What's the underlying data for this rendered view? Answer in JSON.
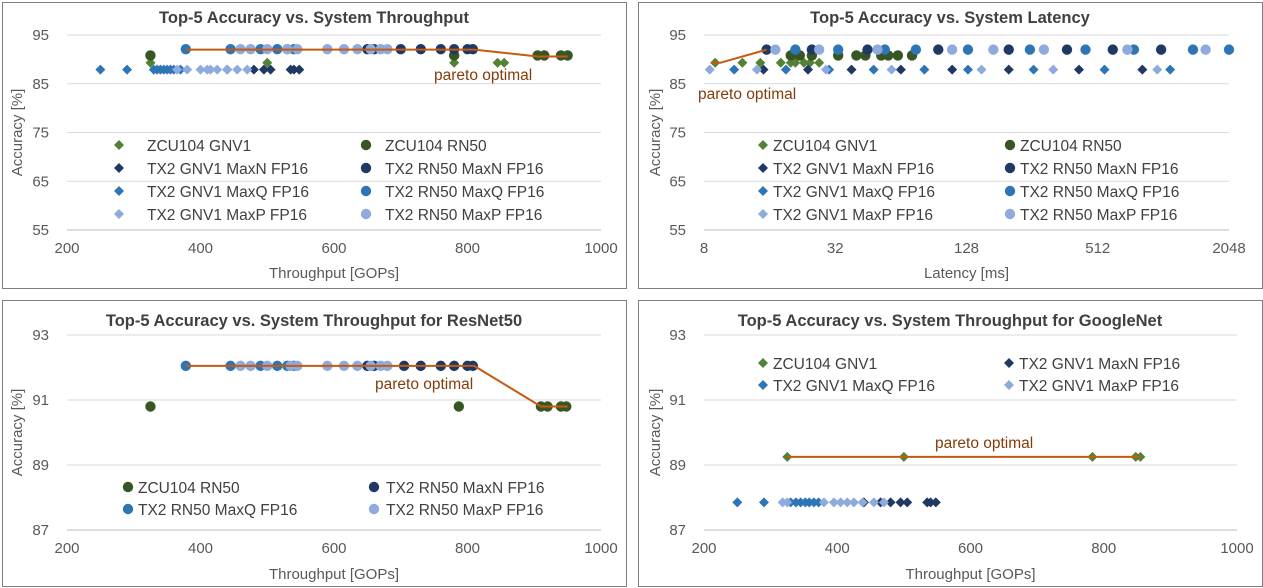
{
  "colors": {
    "ZCU104 GNV1": "#548235",
    "ZCU104 RN50": "#375623",
    "TX2 GNV1 MaxN FP16": "#1f3864",
    "TX2 RN50 MaxN FP16": "#1f3864",
    "TX2 GNV1 MaxQ FP16": "#2e75b6",
    "TX2 RN50 MaxQ FP16": "#2e75b6",
    "TX2 GNV1 MaxP FP16": "#8faadc",
    "TX2 RN50 MaxP FP16": "#8faadc",
    "pareto": "#c55a11"
  },
  "chart_data": [
    {
      "type": "scatter",
      "title": "Top-5  Accuracy vs. System Throughput",
      "xlabel": "Throughput [GOPs]",
      "ylabel": "Accuracy [%]",
      "xscale": "linear",
      "xlim": [
        200,
        1000
      ],
      "ylim": [
        55,
        95
      ],
      "xticks": [
        200,
        400,
        600,
        800,
        1000
      ],
      "yticks": [
        55,
        65,
        75,
        85,
        95
      ],
      "legend_position": "bottom-left",
      "annotation": "pareto optimal",
      "pareto": {
        "x": [
          378,
          810,
          905,
          950
        ],
        "y": [
          92.0,
          92.0,
          90.6,
          90.6
        ]
      },
      "series": [
        {
          "name": "ZCU104 GNV1",
          "marker": "diamond",
          "x": [
            325,
            500,
            780,
            845,
            855
          ],
          "y": [
            89.3,
            89.3,
            89.3,
            89.3,
            89.3
          ]
        },
        {
          "name": "ZCU104 RN50",
          "marker": "circle",
          "x": [
            325,
            780,
            905,
            915,
            940,
            950
          ],
          "y": [
            90.8,
            90.8,
            90.8,
            90.8,
            90.8,
            90.8
          ]
        },
        {
          "name": "TX2 GNV1 MaxN FP16",
          "marker": "diamond",
          "x": [
            440,
            480,
            495,
            505,
            535,
            540,
            548
          ],
          "y": [
            87.9,
            87.9,
            87.9,
            87.9,
            87.9,
            87.9,
            87.9
          ]
        },
        {
          "name": "TX2 RN50 MaxN FP16",
          "marker": "circle",
          "x": [
            650,
            660,
            700,
            730,
            760,
            780,
            800,
            808
          ],
          "y": [
            92.1,
            92.1,
            92.1,
            92.1,
            92.1,
            92.1,
            92.1,
            92.1
          ]
        },
        {
          "name": "TX2 GNV1 MaxQ FP16",
          "marker": "diamond",
          "x": [
            250,
            290,
            330,
            335,
            340,
            345,
            350,
            355,
            360,
            370
          ],
          "y": [
            87.9,
            87.9,
            87.9,
            87.9,
            87.9,
            87.9,
            87.9,
            87.9,
            87.9,
            87.9
          ]
        },
        {
          "name": "TX2 RN50 MaxQ FP16",
          "marker": "circle",
          "x": [
            378,
            445,
            490,
            515,
            530,
            540
          ],
          "y": [
            92.1,
            92.1,
            92.1,
            92.1,
            92.1,
            92.1
          ]
        },
        {
          "name": "TX2 GNV1 MaxP FP16",
          "marker": "diamond",
          "x": [
            365,
            380,
            400,
            410,
            415,
            425,
            440,
            455,
            470
          ],
          "y": [
            87.9,
            87.9,
            87.9,
            87.9,
            87.9,
            87.9,
            87.9,
            87.9,
            87.9
          ]
        },
        {
          "name": "TX2 RN50 MaxP FP16",
          "marker": "circle",
          "x": [
            460,
            475,
            500,
            530,
            545,
            590,
            615,
            635,
            655,
            670,
            680
          ],
          "y": [
            92.1,
            92.1,
            92.1,
            92.1,
            92.1,
            92.1,
            92.1,
            92.1,
            92.1,
            92.1,
            92.1
          ]
        }
      ]
    },
    {
      "type": "scatter",
      "title": "Top-5  Accuracy vs. System Latency",
      "xlabel": "Latency [ms]",
      "ylabel": "Accuracy [%]",
      "xscale": "log2",
      "xlim": [
        8,
        2048
      ],
      "ylim": [
        55,
        95
      ],
      "xticks": [
        8,
        32,
        128,
        512,
        2048
      ],
      "yticks": [
        55,
        65,
        75,
        85,
        95
      ],
      "legend_position": "bottom",
      "annotation": "pareto optimal",
      "pareto": {
        "x": [
          8.6,
          9.5,
          15.5
        ],
        "y": [
          89.3,
          89.3,
          92.0
        ]
      },
      "series": [
        {
          "name": "ZCU104 GNV1",
          "marker": "diamond",
          "x": [
            9.0,
            12.0,
            14.5,
            18.0,
            20.0,
            21.0,
            23.0,
            24.5,
            27.0
          ],
          "y": [
            89.3,
            89.3,
            89.3,
            89.3,
            89.3,
            89.3,
            89.3,
            89.3,
            89.3
          ]
        },
        {
          "name": "ZCU104 RN50",
          "marker": "circle",
          "x": [
            20.0,
            22.0,
            25.0,
            33.0,
            40.0,
            44.0,
            52.0,
            56.0,
            62.0,
            72.0
          ],
          "y": [
            90.8,
            90.8,
            90.8,
            90.8,
            90.8,
            90.8,
            90.8,
            90.8,
            90.8,
            90.8
          ]
        },
        {
          "name": "TX2 GNV1 MaxN FP16",
          "marker": "diamond",
          "x": [
            15.0,
            24.0,
            38.0,
            64.0,
            110.0,
            200.0,
            420.0,
            820.0
          ],
          "y": [
            87.9,
            87.9,
            87.9,
            87.9,
            87.9,
            87.9,
            87.9,
            87.9
          ]
        },
        {
          "name": "TX2 RN50 MaxN FP16",
          "marker": "circle",
          "x": [
            15.5,
            25.0,
            45.0,
            95.0,
            200.0,
            370.0,
            600.0,
            1000.0
          ],
          "y": [
            92.0,
            92.0,
            92.0,
            92.0,
            92.0,
            92.0,
            92.0,
            92.0
          ]
        },
        {
          "name": "TX2 GNV1 MaxQ FP16",
          "marker": "diamond",
          "x": [
            11.0,
            19.0,
            30.0,
            48.0,
            82.0,
            130.0,
            260.0,
            550.0,
            1100.0
          ],
          "y": [
            87.9,
            87.9,
            87.9,
            87.9,
            87.9,
            87.9,
            87.9,
            87.9,
            87.9
          ]
        },
        {
          "name": "TX2 RN50 MaxQ FP16",
          "marker": "circle",
          "x": [
            21.0,
            33.0,
            54.0,
            75.0,
            130.0,
            250.0,
            450.0,
            750.0,
            1400.0,
            2048.0
          ],
          "y": [
            92.0,
            92.0,
            92.0,
            92.0,
            92.0,
            92.0,
            92.0,
            92.0,
            92.0,
            92.0
          ]
        },
        {
          "name": "TX2 GNV1 MaxP FP16",
          "marker": "diamond",
          "x": [
            8.5,
            14.0,
            29.0,
            58.0,
            150.0,
            320.0,
            960.0
          ],
          "y": [
            87.9,
            87.9,
            87.9,
            87.9,
            87.9,
            87.9,
            87.9
          ]
        },
        {
          "name": "TX2 RN50 MaxP FP16",
          "marker": "circle",
          "x": [
            17.0,
            27.0,
            50.0,
            110.0,
            170.0,
            290.0,
            700.0,
            1600.0
          ],
          "y": [
            92.0,
            92.0,
            92.0,
            92.0,
            92.0,
            92.0,
            92.0,
            92.0
          ]
        }
      ]
    },
    {
      "type": "scatter",
      "title": "Top-5  Accuracy vs. System Throughput  for ResNet50",
      "xlabel": "Throughput [GOPs]",
      "ylabel": "Accuracy [%]",
      "xscale": "linear",
      "xlim": [
        200,
        1000
      ],
      "ylim": [
        87,
        93
      ],
      "xticks": [
        200,
        400,
        600,
        800,
        1000
      ],
      "yticks": [
        87,
        89,
        91,
        93
      ],
      "legend_position": "bottom",
      "annotation": "pareto optimal",
      "pareto": {
        "x": [
          378,
          810,
          910,
          950
        ],
        "y": [
          92.05,
          92.05,
          90.8,
          90.8
        ]
      },
      "series": [
        {
          "name": "ZCU104 RN50",
          "marker": "circle",
          "x": [
            325,
            787,
            910,
            920,
            940,
            948
          ],
          "y": [
            90.8,
            90.8,
            90.8,
            90.8,
            90.8,
            90.8
          ]
        },
        {
          "name": "TX2 RN50 MaxN FP16",
          "marker": "circle",
          "x": [
            650,
            660,
            705,
            730,
            760,
            780,
            800,
            808
          ],
          "y": [
            92.05,
            92.05,
            92.05,
            92.05,
            92.05,
            92.05,
            92.05,
            92.05
          ]
        },
        {
          "name": "TX2 RN50 MaxQ FP16",
          "marker": "circle",
          "x": [
            378,
            445,
            490,
            515,
            530,
            540
          ],
          "y": [
            92.05,
            92.05,
            92.05,
            92.05,
            92.05,
            92.05
          ]
        },
        {
          "name": "TX2 RN50 MaxP FP16",
          "marker": "circle",
          "x": [
            460,
            475,
            500,
            535,
            545,
            590,
            615,
            635,
            655,
            670,
            680
          ],
          "y": [
            92.05,
            92.05,
            92.05,
            92.05,
            92.05,
            92.05,
            92.05,
            92.05,
            92.05,
            92.05,
            92.05
          ]
        }
      ]
    },
    {
      "type": "scatter",
      "title": "Top-5  Accuracy vs. System Throughput  for GoogleNet",
      "xlabel": "Throughput [GOPs]",
      "ylabel": "Accuracy [%]",
      "xscale": "linear",
      "xlim": [
        200,
        1000
      ],
      "ylim": [
        87,
        93
      ],
      "xticks": [
        200,
        400,
        600,
        800,
        1000
      ],
      "yticks": [
        87,
        89,
        91,
        93
      ],
      "legend_position": "top",
      "annotation": "pareto optimal",
      "pareto": {
        "x": [
          325,
          855
        ],
        "y": [
          89.25,
          89.25
        ]
      },
      "series": [
        {
          "name": "ZCU104 GNV1",
          "marker": "diamond",
          "x": [
            325,
            500,
            783,
            848,
            855
          ],
          "y": [
            89.25,
            89.25,
            89.25,
            89.25,
            89.25
          ]
        },
        {
          "name": "TX2 GNV1 MaxN FP16",
          "marker": "diamond",
          "x": [
            440,
            465,
            480,
            495,
            505,
            535,
            540,
            548
          ],
          "y": [
            87.85,
            87.85,
            87.85,
            87.85,
            87.85,
            87.85,
            87.85,
            87.85
          ]
        },
        {
          "name": "TX2 GNV1 MaxQ FP16",
          "marker": "diamond",
          "x": [
            250,
            290,
            330,
            338,
            345,
            352,
            358,
            365,
            372
          ],
          "y": [
            87.85,
            87.85,
            87.85,
            87.85,
            87.85,
            87.85,
            87.85,
            87.85,
            87.85
          ]
        },
        {
          "name": "TX2 GNV1 MaxP FP16",
          "marker": "diamond",
          "x": [
            318,
            325,
            380,
            395,
            405,
            415,
            425,
            438,
            455,
            470
          ],
          "y": [
            87.85,
            87.85,
            87.85,
            87.85,
            87.85,
            87.85,
            87.85,
            87.85,
            87.85,
            87.85
          ]
        }
      ]
    }
  ]
}
